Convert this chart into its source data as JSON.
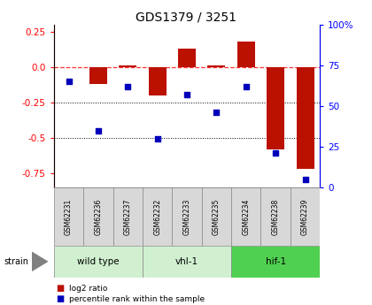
{
  "title": "GDS1379 / 3251",
  "samples": [
    "GSM62231",
    "GSM62236",
    "GSM62237",
    "GSM62232",
    "GSM62233",
    "GSM62235",
    "GSM62234",
    "GSM62238",
    "GSM62239"
  ],
  "log2_ratio": [
    0.0,
    -0.12,
    0.01,
    -0.2,
    0.13,
    0.01,
    0.18,
    -0.58,
    -0.72
  ],
  "pct_rank": [
    65,
    35,
    62,
    30,
    57,
    46,
    62,
    21,
    5
  ],
  "groups": [
    {
      "label": "wild type",
      "start": 0,
      "end": 3,
      "color": "#d0f0d0"
    },
    {
      "label": "vhl-1",
      "start": 3,
      "end": 6,
      "color": "#d0f0d0"
    },
    {
      "label": "hif-1",
      "start": 6,
      "end": 9,
      "color": "#50d050"
    }
  ],
  "ylim_left": [
    -0.85,
    0.3
  ],
  "ylim_right": [
    0,
    100
  ],
  "left_ticks": [
    -0.75,
    -0.5,
    -0.25,
    0.0,
    0.25
  ],
  "right_ticks": [
    0,
    25,
    50,
    75,
    100
  ],
  "bar_color": "#bb1100",
  "dot_color": "#0000bb",
  "sample_bg": "#d8d8d8",
  "plot_bg": "#ffffff",
  "legend_bar_label": "log2 ratio",
  "legend_dot_label": "percentile rank within the sample"
}
